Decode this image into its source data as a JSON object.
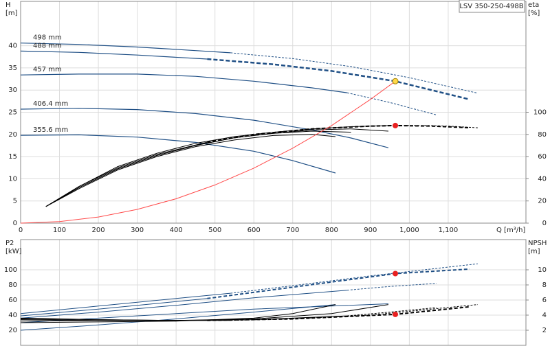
{
  "chart_data": [
    {
      "type": "line",
      "title": "LSV 350-250-498B",
      "ylabel": "H",
      "yunit": "[m]",
      "y2label": "eta",
      "y2unit": "[%]",
      "xlabel": "Q [m³/h]",
      "xlim": [
        0,
        1300
      ],
      "ylim": [
        0,
        50
      ],
      "y2lim": [
        0,
        200
      ],
      "grid": true,
      "xticks": [
        0,
        100,
        200,
        300,
        400,
        500,
        600,
        700,
        800,
        900,
        {
          "value": 1000,
          "label": "1,000"
        },
        {
          "value": 1100,
          "label": "1,100"
        }
      ],
      "yticks": [
        0,
        5,
        10,
        15,
        20,
        25,
        30,
        35,
        40
      ],
      "y2ticks": [
        0,
        20,
        40,
        60,
        80,
        100
      ],
      "series": [
        {
          "name": "498 mm",
          "x": [
            0,
            150,
            300,
            450,
            540
          ],
          "values": [
            40.6,
            40.3,
            39.7,
            38.9,
            38.4
          ],
          "color": "#1f4f85",
          "width": 1.2
        },
        {
          "x": [
            540,
            700,
            850,
            1000,
            1176
          ],
          "values": [
            38.4,
            37.1,
            35.3,
            32.8,
            29.3
          ],
          "color": "#1f4f85",
          "width": 1,
          "dash": "3,2"
        },
        {
          "name": "488 mm",
          "x": [
            0,
            150,
            300,
            480
          ],
          "values": [
            38.8,
            38.5,
            37.9,
            37.0
          ],
          "color": "#1f4f85",
          "width": 1.2
        },
        {
          "x": [
            480,
            650,
            800,
            964,
            1155
          ],
          "values": [
            37.0,
            35.8,
            34.3,
            32.0,
            27.9
          ],
          "color": "#1f4f85",
          "width": 2.5,
          "dash": "6,3"
        },
        {
          "name": "457 mm",
          "x": [
            0,
            150,
            300,
            450,
            600,
            750,
            840
          ],
          "values": [
            33.4,
            33.6,
            33.6,
            33.1,
            32.0,
            30.5,
            29.4
          ],
          "color": "#1f4f85",
          "width": 1.2
        },
        {
          "x": [
            840,
            950,
            1070
          ],
          "values": [
            29.4,
            27.2,
            24.4
          ],
          "color": "#1f4f85",
          "width": 1,
          "dash": "3,2"
        },
        {
          "name": "406.4 mm",
          "x": [
            0,
            150,
            300,
            450,
            600,
            750,
            850,
            946
          ],
          "values": [
            25.7,
            25.9,
            25.6,
            24.7,
            23.2,
            21.0,
            19.2,
            17.0
          ],
          "color": "#1f4f85",
          "width": 1.2
        },
        {
          "name": "355.6 mm",
          "x": [
            0,
            150,
            300,
            450,
            600,
            700,
            810
          ],
          "values": [
            19.8,
            19.9,
            19.4,
            18.2,
            16.2,
            14.1,
            11.3
          ],
          "color": "#1f4f85",
          "width": 1.2
        },
        {
          "x": [
            65,
            150,
            250,
            350,
            450,
            550,
            650,
            750,
            850,
            950
          ],
          "values": [
            15,
            33,
            51,
            63,
            72,
            78,
            82,
            85,
            87,
            88
          ],
          "color": "#000",
          "width": 1,
          "axis": "y2"
        },
        {
          "x": [
            950,
            1050,
            1100,
            1176
          ],
          "values": [
            88,
            88,
            87.5,
            86
          ],
          "color": "#000",
          "width": 1,
          "dash": "3,2",
          "axis": "y2"
        },
        {
          "x": [
            65,
            150,
            250,
            350,
            480
          ],
          "values": [
            15,
            33,
            50,
            62,
            73
          ],
          "color": "#000",
          "width": 1,
          "axis": "y2"
        },
        {
          "x": [
            480,
            600,
            750,
            900,
            964,
            1060,
            1155
          ],
          "values": [
            73,
            80,
            85,
            87.5,
            88,
            87.5,
            86
          ],
          "color": "#000",
          "width": 2,
          "dash": "5,3",
          "axis": "y2"
        },
        {
          "x": [
            65,
            150,
            250,
            350,
            450,
            550,
            650,
            750,
            850,
            946
          ],
          "values": [
            15,
            32,
            49,
            61,
            70,
            77,
            81,
            84,
            85,
            83
          ],
          "color": "#000",
          "width": 1,
          "axis": "y2"
        },
        {
          "x": [
            65,
            150,
            250,
            350,
            450,
            550,
            650,
            750,
            850
          ],
          "values": [
            15,
            32,
            49,
            61,
            70,
            77,
            81,
            83,
            82
          ],
          "color": "#000",
          "width": 1,
          "axis": "y2"
        },
        {
          "x": [
            65,
            150,
            250,
            350,
            450,
            550,
            650,
            750,
            810
          ],
          "values": [
            15,
            31,
            48,
            60,
            69,
            75,
            79,
            80,
            78
          ],
          "color": "#000",
          "width": 1,
          "axis": "y2"
        },
        {
          "x": [
            0,
            100,
            200,
            300,
            400,
            500,
            600,
            700,
            800,
            900,
            964
          ],
          "values": [
            0,
            0.34,
            1.38,
            3.1,
            5.5,
            8.6,
            12.4,
            16.9,
            22.0,
            27.9,
            32
          ],
          "color": "#ff4a4a",
          "width": 1
        }
      ],
      "markers": [
        {
          "x": 964,
          "value": 32,
          "color": "#ffd84a"
        },
        {
          "x": 964,
          "value": 88,
          "color": "#e82020",
          "axis": "y2"
        }
      ]
    },
    {
      "type": "line",
      "ylabel": "P2",
      "yunit": "[kW]",
      "y2label": "NPSH",
      "y2unit": "[m]",
      "xlim": [
        0,
        1300
      ],
      "ylim": [
        0,
        140
      ],
      "y2lim": [
        0,
        14
      ],
      "grid": true,
      "yticks": [
        20,
        40,
        60,
        80,
        100
      ],
      "y2ticks": [
        2,
        4,
        6,
        8,
        10
      ],
      "series": [
        {
          "x": [
            0,
            200,
            400,
            540
          ],
          "values": [
            42,
            52,
            62,
            69
          ],
          "color": "#1f4f85",
          "width": 1
        },
        {
          "x": [
            540,
            700,
            900,
            1176
          ],
          "values": [
            69,
            79,
            92,
            108
          ],
          "color": "#1f4f85",
          "width": 1,
          "dash": "3,2"
        },
        {
          "x": [
            0,
            200,
            400,
            480
          ],
          "values": [
            39,
            48,
            58,
            62
          ],
          "color": "#1f4f85",
          "width": 1
        },
        {
          "x": [
            480,
            700,
            964,
            1155
          ],
          "values": [
            62,
            77,
            95,
            101
          ],
          "color": "#1f4f85",
          "width": 2,
          "dash": "5,3"
        },
        {
          "x": [
            0,
            200,
            400,
            600,
            840
          ],
          "values": [
            36,
            44,
            53,
            63,
            73
          ],
          "color": "#1f4f85",
          "width": 1
        },
        {
          "x": [
            840,
            950,
            1070
          ],
          "values": [
            73,
            78,
            82
          ],
          "color": "#1f4f85",
          "width": 1,
          "dash": "3,2"
        },
        {
          "x": [
            0,
            200,
            400,
            600,
            800,
            946
          ],
          "values": [
            30,
            36,
            42,
            48,
            52,
            55
          ],
          "color": "#1f4f85",
          "width": 1
        },
        {
          "x": [
            0,
            200,
            400,
            600,
            810
          ],
          "values": [
            20,
            27,
            35,
            44,
            54
          ],
          "color": "#1f4f85",
          "width": 1
        },
        {
          "x": [
            0,
            200,
            400,
            600,
            700,
            810
          ],
          "values": [
            3.0,
            3.1,
            3.2,
            3.6,
            4.2,
            5.4
          ],
          "color": "#000",
          "width": 1,
          "axis": "y2"
        },
        {
          "x": [
            0,
            200,
            400,
            600,
            800,
            946
          ],
          "values": [
            3.2,
            3.3,
            3.3,
            3.5,
            4.2,
            5.4
          ],
          "color": "#000",
          "width": 1,
          "axis": "y2"
        },
        {
          "x": [
            0,
            200,
            400,
            600,
            840
          ],
          "values": [
            3.4,
            3.3,
            3.3,
            3.4,
            3.9
          ],
          "color": "#000",
          "width": 1,
          "axis": "y2"
        },
        {
          "x": [
            840,
            950,
            1070
          ],
          "values": [
            3.9,
            4.4,
            5.0
          ],
          "color": "#000",
          "width": 1,
          "dash": "3,2",
          "axis": "y2"
        },
        {
          "x": [
            0,
            200,
            400,
            540
          ],
          "values": [
            3.6,
            3.4,
            3.3,
            3.3
          ],
          "color": "#000",
          "width": 1,
          "axis": "y2"
        },
        {
          "x": [
            540,
            700,
            900,
            1176
          ],
          "values": [
            3.3,
            3.5,
            4.0,
            5.4
          ],
          "color": "#000",
          "width": 1,
          "dash": "3,2",
          "axis": "y2"
        },
        {
          "x": [
            0,
            200,
            400,
            480
          ],
          "values": [
            3.5,
            3.4,
            3.3,
            3.3
          ],
          "color": "#000",
          "width": 1,
          "axis": "y2"
        },
        {
          "x": [
            480,
            700,
            964,
            1155
          ],
          "values": [
            3.3,
            3.5,
            4.1,
            5.1
          ],
          "color": "#000",
          "width": 2,
          "dash": "5,3",
          "axis": "y2"
        }
      ],
      "markers": [
        {
          "x": 964,
          "value": 95,
          "color": "#e82020"
        },
        {
          "x": 964,
          "value": 4.1,
          "color": "#e82020",
          "axis": "y2"
        }
      ]
    }
  ]
}
